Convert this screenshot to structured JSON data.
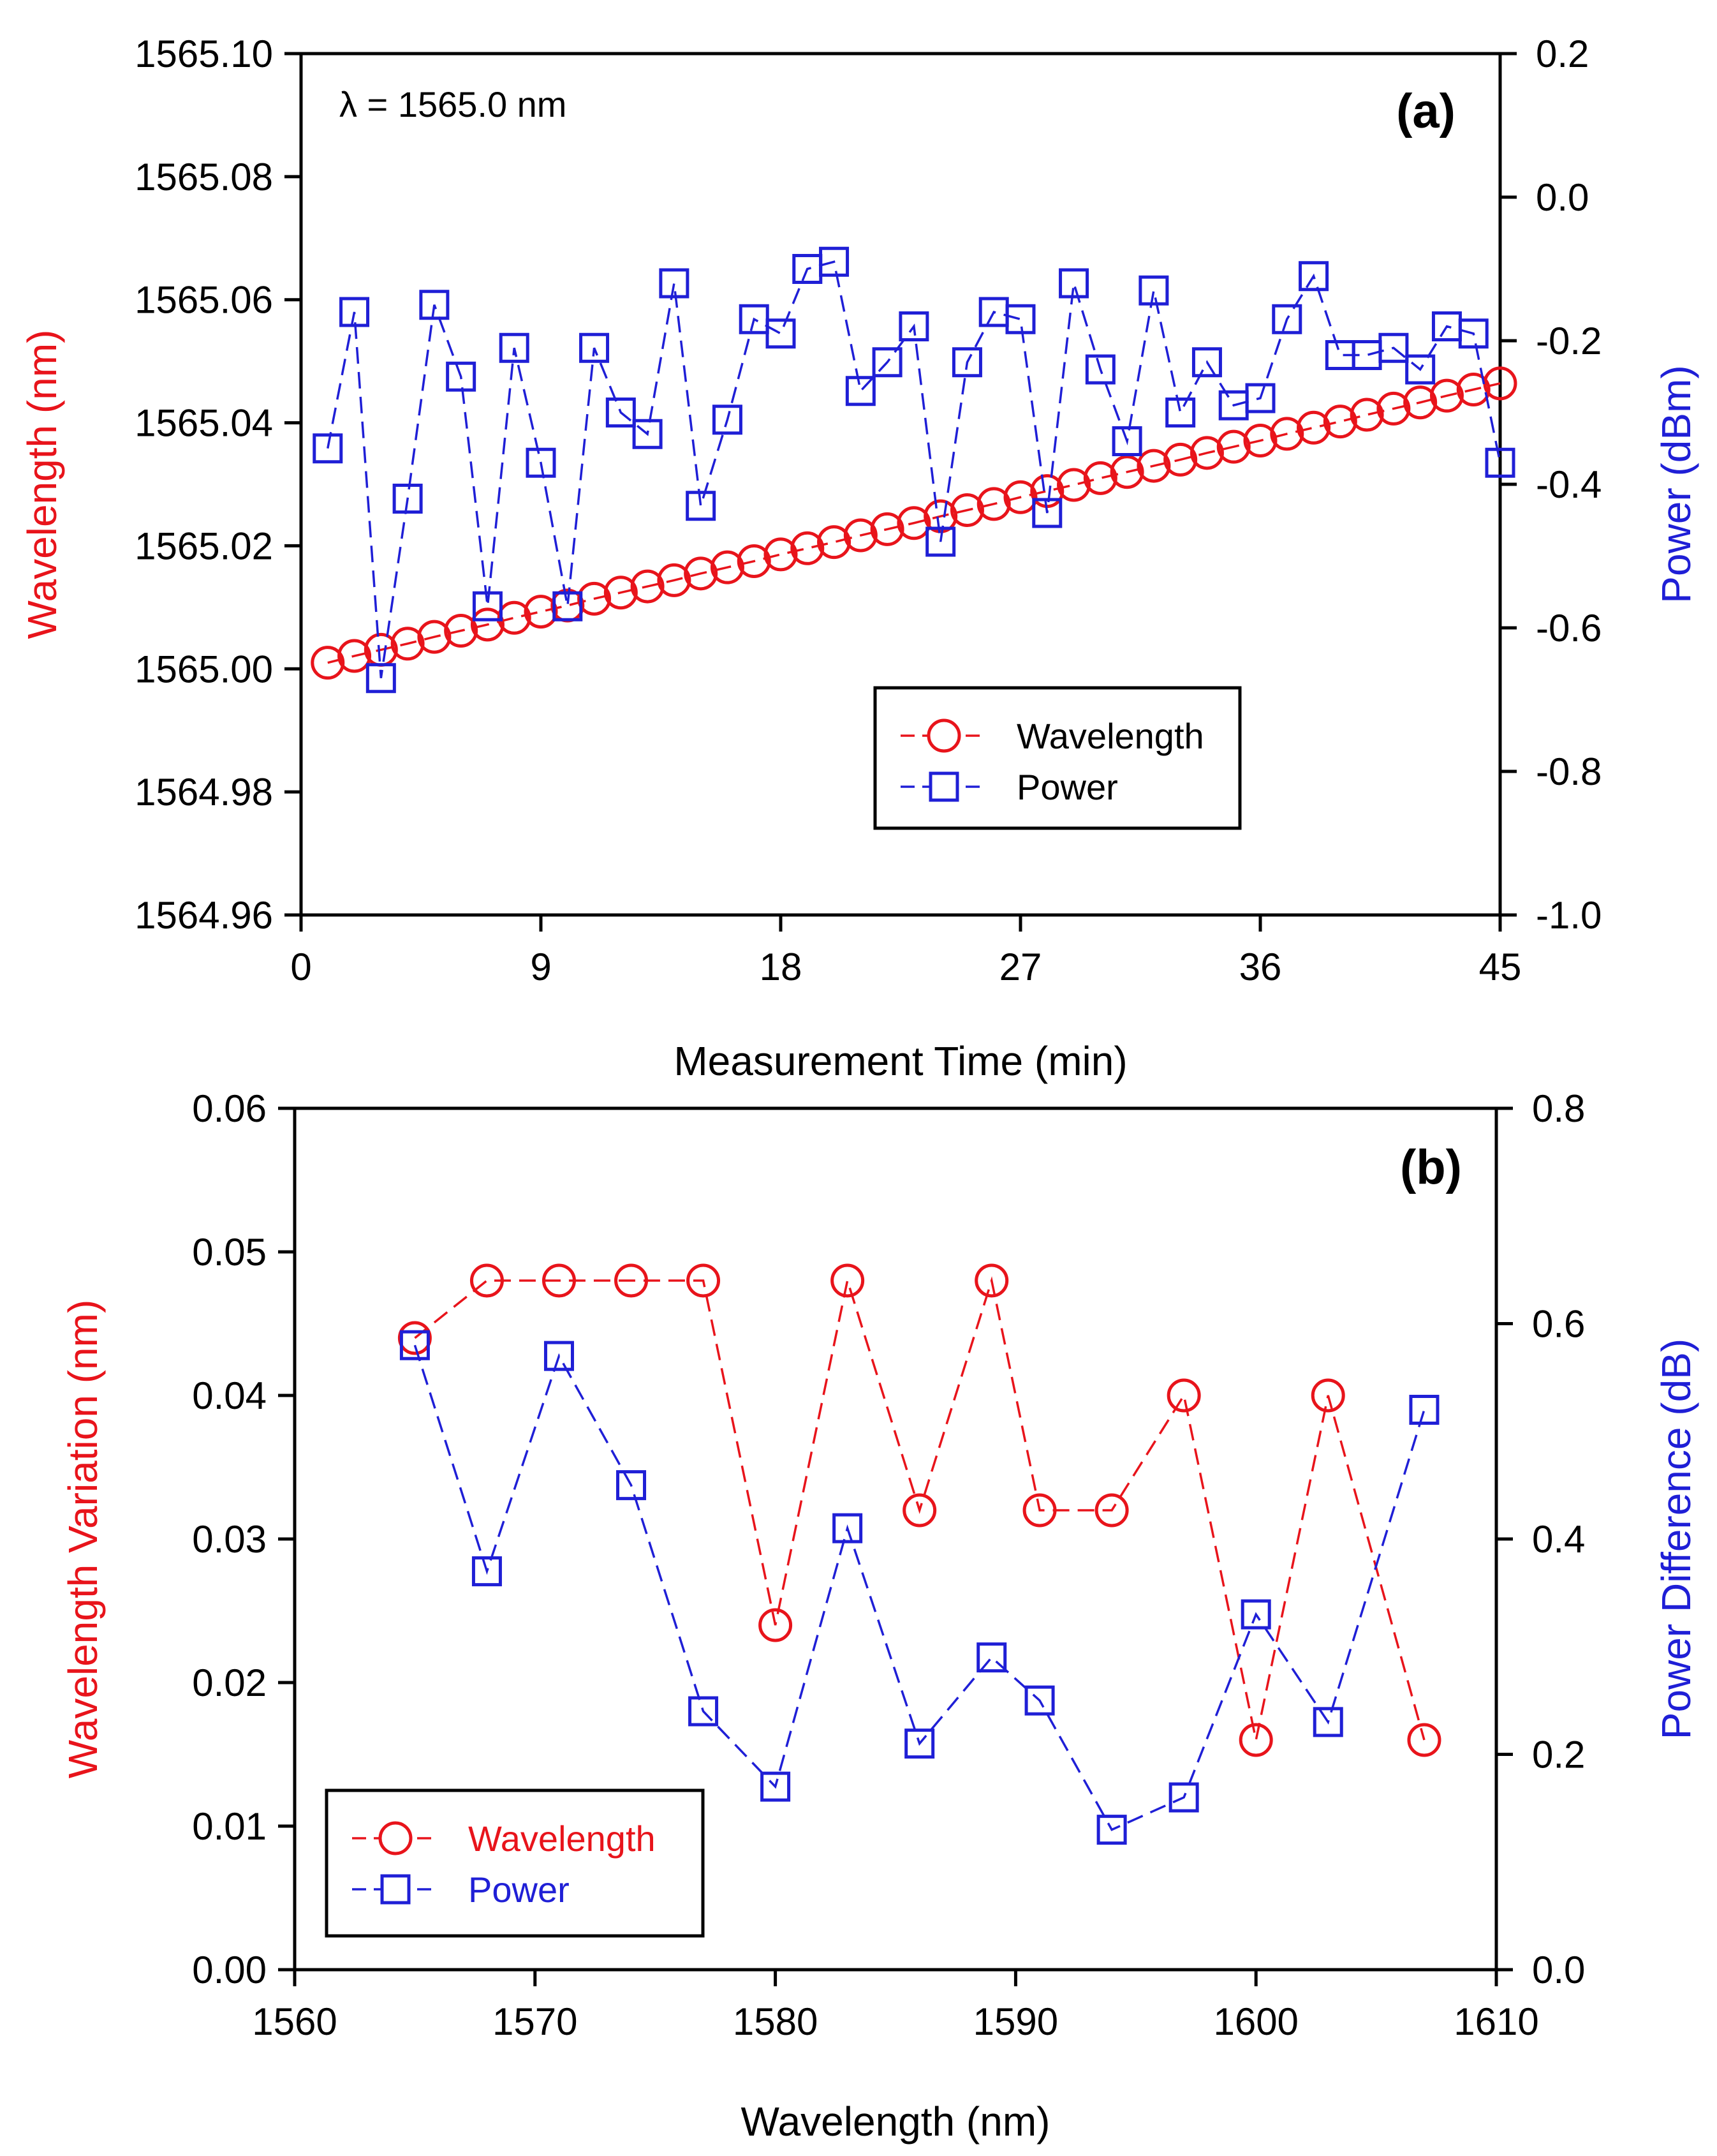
{
  "chart_data": [
    {
      "type": "line",
      "panel_label": "(a)",
      "annotation": "λ = 1565.0 nm",
      "xlabel": "Measurement Time (min)",
      "ylabel_left": "Wavelength (nm)",
      "ylabel_right": "Power (dBm)",
      "xlim": [
        0,
        45
      ],
      "ylim_left": [
        1564.96,
        1565.1
      ],
      "ylim_right": [
        -1.0,
        0.2
      ],
      "x_ticks": [
        "0",
        "9",
        "18",
        "27",
        "36",
        "45"
      ],
      "y_left_ticks": [
        "1564.96",
        "1564.98",
        "1565.00",
        "1565.02",
        "1565.04",
        "1565.06",
        "1565.08",
        "1565.10"
      ],
      "y_right_ticks": [
        "-1.0",
        "-0.8",
        "-0.6",
        "-0.4",
        "-0.2",
        "0.0",
        "0.2"
      ],
      "legend": [
        "Wavelength",
        "Power"
      ],
      "legend_position": "lower-right",
      "series": [
        {
          "name": "Wavelength",
          "axis": "left",
          "color": "#e8141b",
          "marker": "circle",
          "x": [
            1,
            2,
            3,
            4,
            5,
            6,
            7,
            8,
            9,
            10,
            11,
            12,
            13,
            14,
            15,
            16,
            17,
            18,
            19,
            20,
            21,
            22,
            23,
            24,
            25,
            26,
            27,
            28,
            29,
            30,
            31,
            32,
            33,
            34,
            35,
            36,
            37,
            38,
            39,
            40,
            41,
            42,
            43,
            44,
            45
          ],
          "values": [
            1565.001,
            1565.0021,
            1565.0031,
            1565.0041,
            1565.0052,
            1565.0062,
            1565.0072,
            1565.0083,
            1565.0093,
            1565.0103,
            1565.0114,
            1565.0124,
            1565.0134,
            1565.0144,
            1565.0155,
            1565.0165,
            1565.0175,
            1565.0186,
            1565.0196,
            1565.0206,
            1565.0217,
            1565.0227,
            1565.0237,
            1565.0248,
            1565.0258,
            1565.0268,
            1565.0279,
            1565.0289,
            1565.0299,
            1565.031,
            1565.032,
            1565.033,
            1565.034,
            1565.0351,
            1565.0361,
            1565.0371,
            1565.0382,
            1565.0392,
            1565.0402,
            1565.0413,
            1565.0423,
            1565.0433,
            1565.0444,
            1565.0454,
            1565.0464
          ]
        },
        {
          "name": "Power",
          "axis": "right",
          "color": "#1f1fd6",
          "marker": "square",
          "x": [
            1,
            2,
            3,
            4,
            5,
            6,
            7,
            8,
            9,
            10,
            11,
            12,
            13,
            14,
            15,
            16,
            17,
            18,
            19,
            20,
            21,
            22,
            23,
            24,
            25,
            26,
            27,
            28,
            29,
            30,
            31,
            32,
            33,
            34,
            35,
            36,
            37,
            38,
            39,
            40,
            41,
            42,
            43,
            44,
            45
          ],
          "values": [
            -0.35,
            -0.16,
            -0.67,
            -0.42,
            -0.15,
            -0.25,
            -0.57,
            -0.21,
            -0.37,
            -0.57,
            -0.21,
            -0.3,
            -0.33,
            -0.12,
            -0.43,
            -0.31,
            -0.17,
            -0.19,
            -0.1,
            -0.09,
            -0.27,
            -0.23,
            -0.18,
            -0.48,
            -0.23,
            -0.16,
            -0.17,
            -0.44,
            -0.12,
            -0.24,
            -0.34,
            -0.13,
            -0.3,
            -0.23,
            -0.29,
            -0.28,
            -0.17,
            -0.11,
            -0.22,
            -0.22,
            -0.21,
            -0.24,
            -0.18,
            -0.19,
            -0.37
          ]
        }
      ]
    },
    {
      "type": "line",
      "panel_label": "(b)",
      "xlabel": "Wavelength (nm)",
      "ylabel_left": "Wavelength Variation (nm)",
      "ylabel_right": "Power Difference (dB)",
      "xlim": [
        1560,
        1610
      ],
      "ylim_left": [
        0.0,
        0.06
      ],
      "ylim_right": [
        0.0,
        0.8
      ],
      "x_ticks": [
        "1560",
        "1570",
        "1580",
        "1590",
        "1600",
        "1610"
      ],
      "y_left_ticks": [
        "0.00",
        "0.01",
        "0.02",
        "0.03",
        "0.04",
        "0.05",
        "0.06"
      ],
      "y_right_ticks": [
        "0.0",
        "0.2",
        "0.4",
        "0.6",
        "0.8"
      ],
      "legend": [
        "Wavelength",
        "Power"
      ],
      "legend_position": "lower-left",
      "series": [
        {
          "name": "Wavelength",
          "axis": "left",
          "color": "#e8141b",
          "marker": "circle",
          "x": [
            1565,
            1568,
            1571,
            1574,
            1577,
            1580,
            1583,
            1586,
            1589,
            1591,
            1594,
            1597,
            1600,
            1603,
            1607
          ],
          "values": [
            0.044,
            0.048,
            0.048,
            0.048,
            0.048,
            0.024,
            0.048,
            0.032,
            0.048,
            0.032,
            0.032,
            0.04,
            0.016,
            0.04,
            0.016
          ]
        },
        {
          "name": "Power",
          "axis": "right",
          "color": "#1f1fd6",
          "marker": "square",
          "x": [
            1565,
            1568,
            1571,
            1574,
            1577,
            1580,
            1583,
            1586,
            1589,
            1591,
            1594,
            1597,
            1600,
            1603,
            1607
          ],
          "values": [
            0.58,
            0.37,
            0.57,
            0.45,
            0.24,
            0.17,
            0.41,
            0.21,
            0.29,
            0.25,
            0.13,
            0.16,
            0.33,
            0.23,
            0.52
          ]
        }
      ]
    }
  ]
}
